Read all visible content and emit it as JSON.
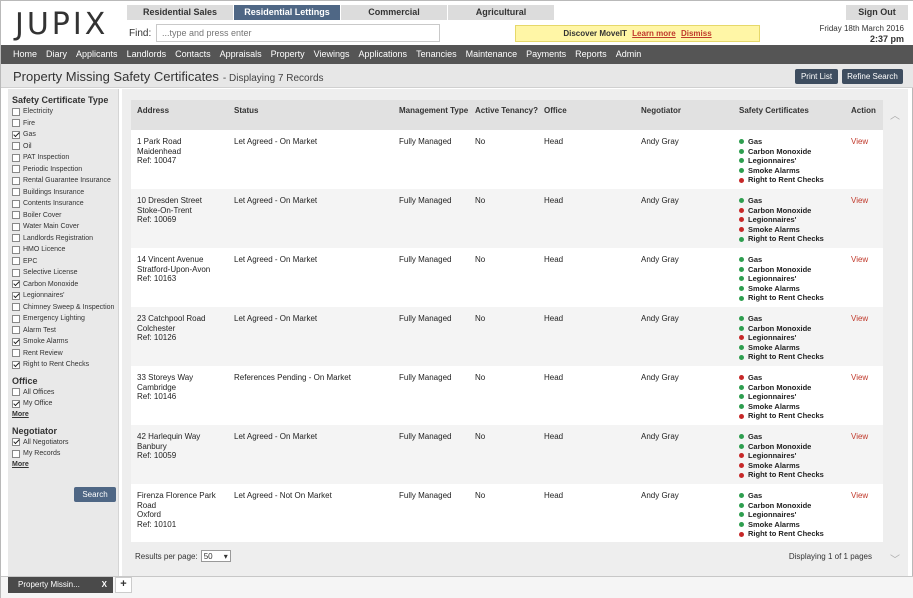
{
  "app": {
    "logo": "JUPIX",
    "tabs": [
      "Residential Sales",
      "Residential Lettings",
      "Commercial",
      "Agricultural"
    ],
    "active_tab": 1,
    "find_label": "Find:",
    "find_placeholder": "...type and press enter",
    "banner": {
      "text": "Discover MoveIT",
      "learn_more": "Learn more",
      "dismiss": "Dismiss"
    },
    "sign_out": "Sign Out",
    "date": "Friday 18th March 2016",
    "time": "2:37 pm"
  },
  "nav": [
    "Home",
    "Diary",
    "Applicants",
    "Landlords",
    "Contacts",
    "Appraisals",
    "Property",
    "Viewings",
    "Applications",
    "Tenancies",
    "Maintenance",
    "Payments",
    "Reports",
    "Admin"
  ],
  "page": {
    "title": "Property Missing Safety Certificates",
    "subtitle": "- Displaying 7 Records",
    "print_list": "Print List",
    "refine_search": "Refine Search"
  },
  "sidebar": {
    "safety_heading": "Safety Certificate Type",
    "safety_items": [
      {
        "label": "Electricity",
        "checked": false
      },
      {
        "label": "Fire",
        "checked": false
      },
      {
        "label": "Gas",
        "checked": true
      },
      {
        "label": "Oil",
        "checked": false
      },
      {
        "label": "PAT Inspection",
        "checked": false
      },
      {
        "label": "Periodic Inspection",
        "checked": false
      },
      {
        "label": "Rental Guarantee Insurance",
        "checked": false
      },
      {
        "label": "Buildings Insurance",
        "checked": false
      },
      {
        "label": "Contents Insurance",
        "checked": false
      },
      {
        "label": "Boiler Cover",
        "checked": false
      },
      {
        "label": "Water Main Cover",
        "checked": false
      },
      {
        "label": "Landlords Registration",
        "checked": false
      },
      {
        "label": "HMO Licence",
        "checked": false
      },
      {
        "label": "EPC",
        "checked": false
      },
      {
        "label": "Selective License",
        "checked": false
      },
      {
        "label": "Carbon Monoxide",
        "checked": true
      },
      {
        "label": "Legionnaires'",
        "checked": true
      },
      {
        "label": "Chimney Sweep & Inspection",
        "checked": false
      },
      {
        "label": "Emergency Lighting",
        "checked": false
      },
      {
        "label": "Alarm Test",
        "checked": false
      },
      {
        "label": "Smoke Alarms",
        "checked": true
      },
      {
        "label": "Rent Review",
        "checked": false
      },
      {
        "label": "Right to Rent Checks",
        "checked": true
      }
    ],
    "office_heading": "Office",
    "office_items": [
      {
        "label": "All Offices",
        "checked": false
      },
      {
        "label": "My Office",
        "checked": true
      }
    ],
    "office_more": "More",
    "negotiator_heading": "Negotiator",
    "negotiator_items": [
      {
        "label": "All Negotiators",
        "checked": true
      },
      {
        "label": "My Records",
        "checked": false
      }
    ],
    "negotiator_more": "More",
    "search_button": "Search"
  },
  "table": {
    "headers": [
      "Address",
      "Status",
      "Management Type",
      "Active Tenancy?",
      "Office",
      "Negotiator",
      "Safety Certificates",
      "Action"
    ],
    "colors": {
      "ok": "#2e9e4f",
      "missing": "#c62828"
    },
    "rows": [
      {
        "address": [
          "1 Park Road",
          "Maidenhead",
          "Ref: 10047"
        ],
        "status": "Let Agreed - On Market",
        "management": "Fully Managed",
        "tenancy": "No",
        "office": "Head",
        "negotiator": "Andy Gray",
        "certs": [
          [
            "Gas",
            "ok"
          ],
          [
            "Carbon Monoxide",
            "ok"
          ],
          [
            "Legionnaires'",
            "ok"
          ],
          [
            "Smoke Alarms",
            "ok"
          ],
          [
            "Right to Rent Checks",
            "missing"
          ]
        ],
        "action": "View"
      },
      {
        "address": [
          "10 Dresden Street",
          "Stoke-On-Trent",
          "Ref: 10069"
        ],
        "status": "Let Agreed - On Market",
        "management": "Fully Managed",
        "tenancy": "No",
        "office": "Head",
        "negotiator": "Andy Gray",
        "certs": [
          [
            "Gas",
            "ok"
          ],
          [
            "Carbon Monoxide",
            "missing"
          ],
          [
            "Legionnaires'",
            "missing"
          ],
          [
            "Smoke Alarms",
            "missing"
          ],
          [
            "Right to Rent Checks",
            "ok"
          ]
        ],
        "action": "View"
      },
      {
        "address": [
          "14 Vincent Avenue",
          "Stratford-Upon-Avon",
          "Ref: 10163"
        ],
        "status": "Let Agreed - On Market",
        "management": "Fully Managed",
        "tenancy": "No",
        "office": "Head",
        "negotiator": "Andy Gray",
        "certs": [
          [
            "Gas",
            "ok"
          ],
          [
            "Carbon Monoxide",
            "ok"
          ],
          [
            "Legionnaires'",
            "ok"
          ],
          [
            "Smoke Alarms",
            "ok"
          ],
          [
            "Right to Rent Checks",
            "ok"
          ]
        ],
        "action": "View"
      },
      {
        "address": [
          "23 Catchpool Road",
          "Colchester",
          "Ref: 10126"
        ],
        "status": "Let Agreed - On Market",
        "management": "Fully Managed",
        "tenancy": "No",
        "office": "Head",
        "negotiator": "Andy Gray",
        "certs": [
          [
            "Gas",
            "ok"
          ],
          [
            "Carbon Monoxide",
            "ok"
          ],
          [
            "Legionnaires'",
            "missing"
          ],
          [
            "Smoke Alarms",
            "ok"
          ],
          [
            "Right to Rent Checks",
            "ok"
          ]
        ],
        "action": "View"
      },
      {
        "address": [
          "33 Storeys Way",
          "Cambridge",
          "Ref: 10146"
        ],
        "status": "References Pending - On Market",
        "management": "Fully Managed",
        "tenancy": "No",
        "office": "Head",
        "negotiator": "Andy Gray",
        "certs": [
          [
            "Gas",
            "missing"
          ],
          [
            "Carbon Monoxide",
            "ok"
          ],
          [
            "Legionnaires'",
            "ok"
          ],
          [
            "Smoke Alarms",
            "ok"
          ],
          [
            "Right to Rent Checks",
            "missing"
          ]
        ],
        "action": "View"
      },
      {
        "address": [
          "42 Harlequin Way",
          "Banbury",
          "Ref: 10059"
        ],
        "status": "Let Agreed - On Market",
        "management": "Fully Managed",
        "tenancy": "No",
        "office": "Head",
        "negotiator": "Andy Gray",
        "certs": [
          [
            "Gas",
            "ok"
          ],
          [
            "Carbon Monoxide",
            "ok"
          ],
          [
            "Legionnaires'",
            "missing"
          ],
          [
            "Smoke Alarms",
            "missing"
          ],
          [
            "Right to Rent Checks",
            "missing"
          ]
        ],
        "action": "View"
      },
      {
        "address": [
          "Firenza Florence Park",
          "Road",
          "Oxford",
          "Ref: 10101"
        ],
        "status": "Let Agreed - Not On Market",
        "management": "Fully Managed",
        "tenancy": "No",
        "office": "Head",
        "negotiator": "Andy Gray",
        "certs": [
          [
            "Gas",
            "ok"
          ],
          [
            "Carbon Monoxide",
            "ok"
          ],
          [
            "Legionnaires'",
            "ok"
          ],
          [
            "Smoke Alarms",
            "ok"
          ],
          [
            "Right to Rent Checks",
            "missing"
          ]
        ],
        "action": "View"
      }
    ],
    "results_per_page_label": "Results per page:",
    "results_per_page_value": "50",
    "pagination": "Displaying 1 of 1 pages"
  },
  "bottom_tabs": {
    "label": "Property Missin...",
    "close": "X",
    "add": "+"
  }
}
